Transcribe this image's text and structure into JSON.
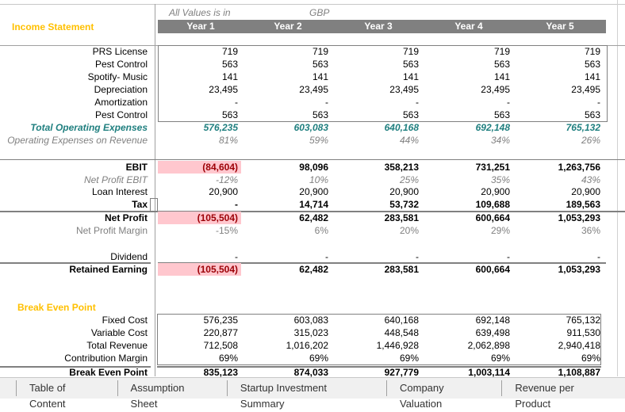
{
  "header": {
    "section_title": "Income Statement",
    "units_label": "All Values is in",
    "currency": "GBP",
    "years": [
      "Year 1",
      "Year 2",
      "Year 3",
      "Year 4",
      "Year 5"
    ]
  },
  "rows": [
    {
      "label": "PRS License",
      "style": "n",
      "values": [
        "719",
        "719",
        "719",
        "719",
        "719"
      ]
    },
    {
      "label": "Pest Control",
      "style": "n",
      "values": [
        "563",
        "563",
        "563",
        "563",
        "563"
      ]
    },
    {
      "label": "Spotify- Music",
      "style": "n",
      "values": [
        "141",
        "141",
        "141",
        "141",
        "141"
      ]
    },
    {
      "label": "Depreciation",
      "style": "n",
      "values": [
        "23,495",
        "23,495",
        "23,495",
        "23,495",
        "23,495"
      ]
    },
    {
      "label": "Amortization",
      "style": "n",
      "values": [
        "-",
        "-",
        "-",
        "-",
        "-"
      ]
    },
    {
      "label": "Pest Control",
      "style": "n",
      "values": [
        "563",
        "563",
        "563",
        "563",
        "563"
      ]
    },
    {
      "label": "Total Operating Expenses",
      "style": "tot",
      "values": [
        "576,235",
        "603,083",
        "640,168",
        "692,148",
        "765,132"
      ]
    },
    {
      "label": "Operating Expenses on Revenue",
      "style": "pct",
      "values": [
        "81%",
        "59%",
        "44%",
        "34%",
        "26%"
      ]
    },
    {
      "label": "EBIT",
      "style": "b",
      "values": [
        "(84,604)",
        "98,096",
        "358,213",
        "731,251",
        "1,263,756"
      ]
    },
    {
      "label": "Net Profit EBIT",
      "style": "pct",
      "values": [
        "-12%",
        "10%",
        "25%",
        "35%",
        "43%"
      ]
    },
    {
      "label": "Loan Interest",
      "style": "n",
      "values": [
        "20,900",
        "20,900",
        "20,900",
        "20,900",
        "20,900"
      ]
    },
    {
      "label": "Tax",
      "style": "b",
      "values": [
        "-",
        "14,714",
        "53,732",
        "109,688",
        "189,563"
      ]
    },
    {
      "label": "Net Profit",
      "style": "b",
      "values": [
        "(105,504)",
        "62,482",
        "283,581",
        "600,664",
        "1,053,293"
      ]
    },
    {
      "label": "Net Profit Margin",
      "style": "pctn",
      "values": [
        "-15%",
        "6%",
        "20%",
        "29%",
        "36%"
      ]
    },
    {
      "label": "Dividend",
      "style": "n",
      "values": [
        "-",
        "-",
        "-",
        "-",
        "-"
      ]
    },
    {
      "label": "Retained Earning",
      "style": "b",
      "values": [
        "(105,504)",
        "62,482",
        "283,581",
        "600,664",
        "1,053,293"
      ]
    }
  ],
  "break_even": {
    "title": "Break Even Point",
    "rows": [
      {
        "label": "Fixed Cost",
        "style": "n",
        "values": [
          "576,235",
          "603,083",
          "640,168",
          "692,148",
          "765,132"
        ]
      },
      {
        "label": "Variable Cost",
        "style": "n",
        "values": [
          "220,877",
          "315,023",
          "448,548",
          "639,498",
          "911,530"
        ]
      },
      {
        "label": "Total Revenue",
        "style": "n",
        "values": [
          "712,508",
          "1,016,202",
          "1,446,928",
          "2,062,898",
          "2,940,418"
        ]
      },
      {
        "label": "Contribution Margin",
        "style": "n",
        "values": [
          "69%",
          "69%",
          "69%",
          "69%",
          "69%"
        ]
      },
      {
        "label": "Break Even Point",
        "style": "b",
        "values": [
          "835,123",
          "874,033",
          "927,779",
          "1,003,114",
          "1,108,887"
        ]
      }
    ]
  },
  "colors": {
    "section_title": "#FFC000",
    "total": "#1F7F7F",
    "negative_fill": "#FFC7CE",
    "negative_text": "#9C0006",
    "header_bar": "#808080"
  },
  "sheet_tabs": [
    "Table of Content",
    "Assumption Sheet",
    "Startup Investment Summary",
    "Company Valuation",
    "Revenue per Product"
  ]
}
